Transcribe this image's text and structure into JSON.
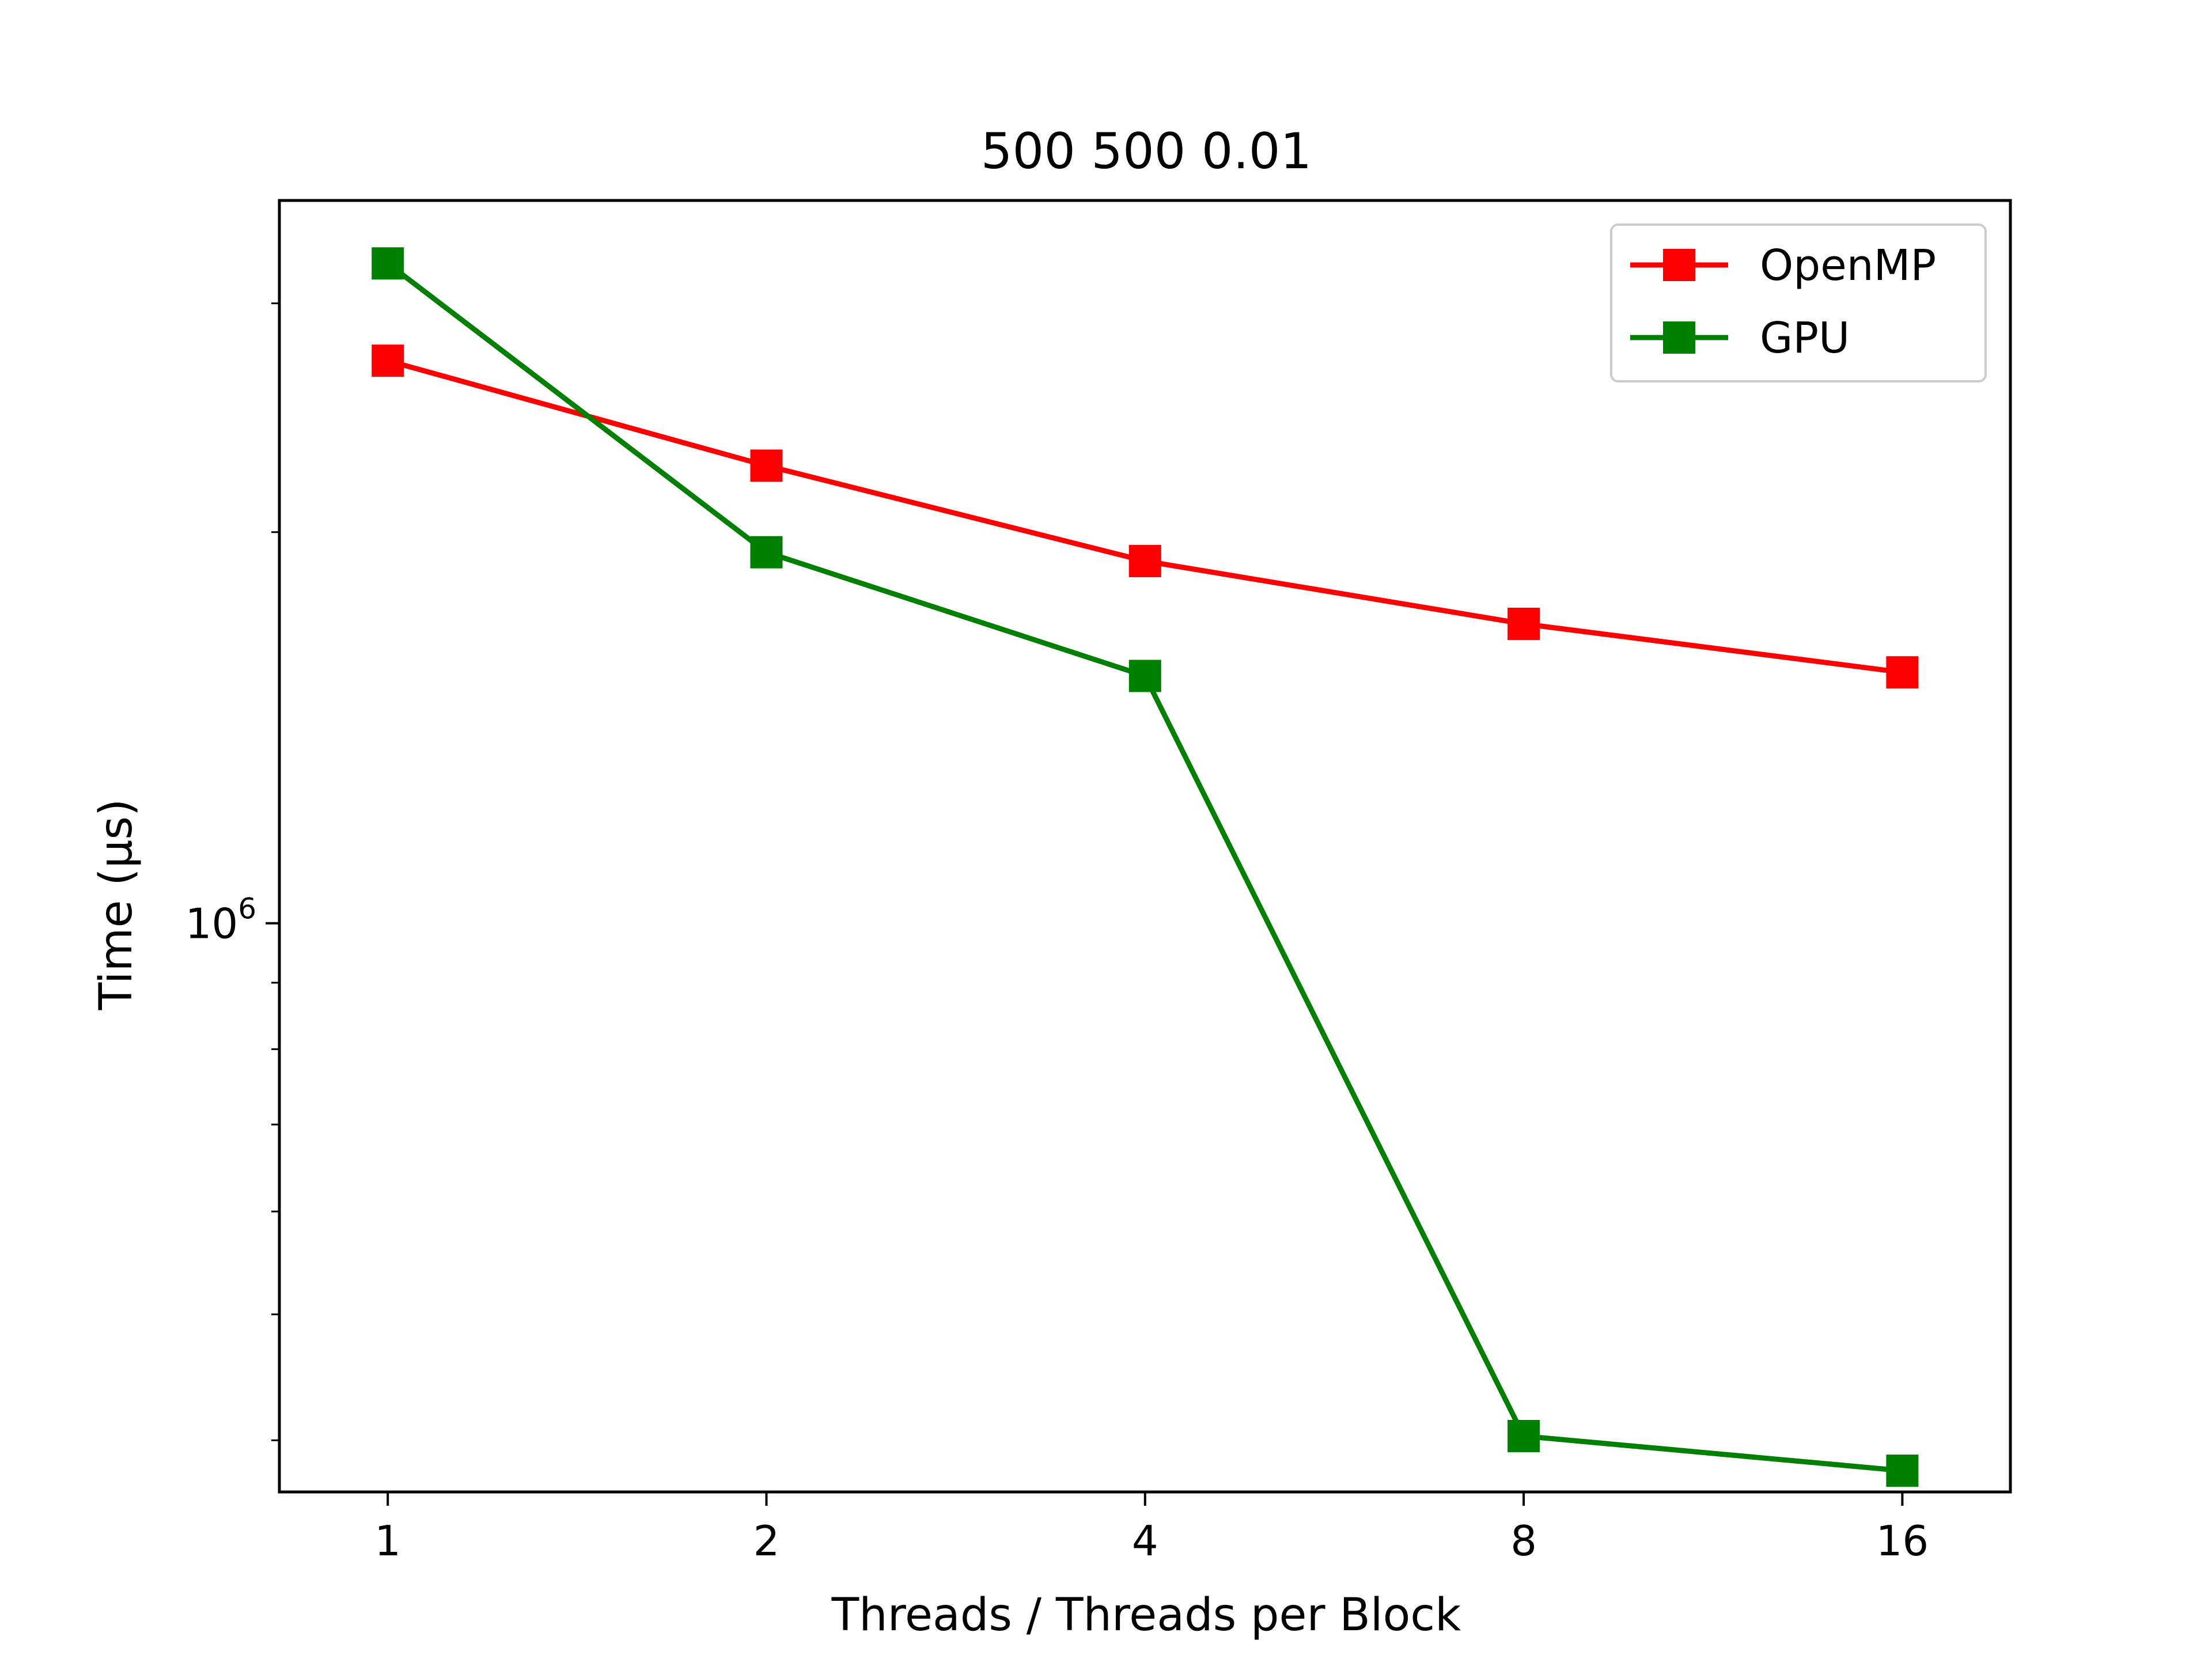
{
  "chart_data": {
    "type": "line",
    "title": "500 500 0.01",
    "xlabel": "Threads / Threads per Block",
    "ylabel": "Time (µs)",
    "x": [
      1,
      2,
      4,
      8,
      16
    ],
    "x_tick_labels": [
      "1",
      "2",
      "4",
      "8",
      "16"
    ],
    "x_scale": "log2",
    "y_scale": "log",
    "y_tick": {
      "base": "10",
      "exp": "6"
    },
    "ylim": [
      365000,
      3600000
    ],
    "grid": false,
    "legend_position": "top-right",
    "series": [
      {
        "name": "OpenMP",
        "color": "#ff0000",
        "marker": "square",
        "values": [
          2710000,
          2250000,
          1900000,
          1700000,
          1560000
        ]
      },
      {
        "name": "GPU",
        "color": "#008000",
        "marker": "square",
        "values": [
          3220000,
          1930000,
          1550000,
          403000,
          379000
        ]
      }
    ]
  }
}
